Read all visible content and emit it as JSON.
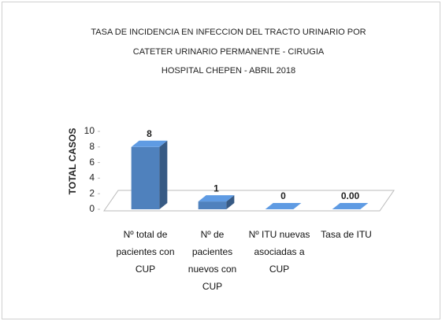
{
  "chart_data": {
    "type": "bar3d",
    "title": [
      "TASA DE INCIDENCIA EN INFECCION DEL TRACTO URINARIO POR",
      "CATETER URINARIO PERMANENTE - CIRUGIA",
      "HOSPITAL CHEPEN - ABRIL 2018"
    ],
    "ylabel": "TOTAL CASOS",
    "categories": [
      "Nº total de pacientes con CUP",
      "Nº de pacientes nuevos con CUP",
      "Nº ITU nuevas asociadas a CUP",
      "Tasa de ITU"
    ],
    "values": [
      8,
      1,
      0,
      0
    ],
    "value_labels": [
      "8",
      "1",
      "0",
      "0.00"
    ],
    "color": "#4f81bd",
    "ylim": [
      0,
      10
    ],
    "yticks": [
      0,
      2,
      4,
      6,
      8,
      10
    ],
    "grid": false
  }
}
